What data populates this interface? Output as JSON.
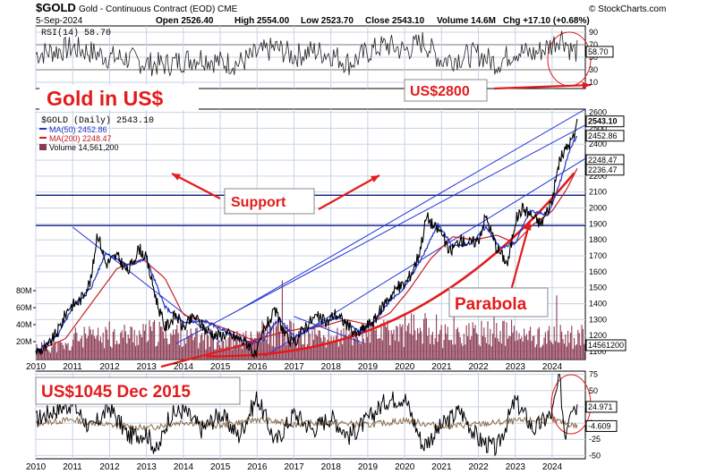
{
  "header": {
    "symbol": "$GOLD",
    "description": "Gold - Continuous Contract (EOD) CME",
    "date": "5-Sep-2024",
    "open": "Open 2526.40",
    "high": "High 2554.00",
    "low": "Low 2523.70",
    "close": "Close 2543.10",
    "volume": "Volume 14.6M",
    "chg": "Chg +17.10 (+0.68%)",
    "watermark": "© StockCharts.com"
  },
  "annotations": {
    "title": "Gold  in US$",
    "support": "Support",
    "us2800": "US$2800",
    "parabola": "Parabola",
    "low_label": "US$1045 Dec 2015"
  },
  "colors": {
    "price": "#000000",
    "ma50": "#1f35c8",
    "ma200": "#c81e1e",
    "volume": "#8a3a52",
    "grid": "#c7d3e6",
    "annotation_red": "#e31b1b",
    "trendline_blue": "#2536d6",
    "support_navy": "#101a80",
    "macd_brown": "#8b6a4a"
  },
  "chart_data": [
    {
      "type": "line",
      "panel": "RSI",
      "legend": "RSI(14) 58.70",
      "yticks": [
        10,
        30,
        50,
        70,
        90
      ],
      "ylim": [
        0,
        100
      ],
      "levels": [
        30,
        70
      ],
      "last_value_label": "58.70",
      "series": [
        {
          "name": "RSI(14)",
          "x": [
            2010.0,
            2010.5,
            2011.0,
            2011.5,
            2012.0,
            2012.5,
            2013.0,
            2013.5,
            2014.0,
            2014.5,
            2015.0,
            2015.5,
            2016.0,
            2016.5,
            2017.0,
            2017.5,
            2018.0,
            2018.5,
            2019.0,
            2019.5,
            2020.0,
            2020.5,
            2021.0,
            2021.5,
            2022.0,
            2022.5,
            2023.0,
            2023.5,
            2024.0,
            2024.25,
            2024.5,
            2024.68
          ],
          "values": [
            55,
            60,
            65,
            58,
            50,
            48,
            40,
            38,
            45,
            50,
            42,
            40,
            55,
            65,
            52,
            60,
            55,
            40,
            58,
            70,
            60,
            75,
            45,
            50,
            55,
            40,
            60,
            55,
            70,
            85,
            62,
            58.7
          ]
        }
      ]
    },
    {
      "type": "line",
      "panel": "Price",
      "legend": [
        "$GOLD (Daily) 2543.10",
        "MA(50) 2452.86",
        "MA(200) 2248.47",
        "Volume 14,561,200"
      ],
      "yticks": [
        1100,
        1200,
        1300,
        1400,
        1500,
        1600,
        1700,
        1800,
        1900,
        2000,
        2100,
        2200,
        2300,
        2400,
        2500,
        2600
      ],
      "ylim": [
        1050,
        2620
      ],
      "xticks": [
        "2010",
        "2011",
        "2012",
        "2013",
        "2014",
        "2015",
        "2016",
        "2017",
        "2018",
        "2019",
        "2020",
        "2021",
        "2022",
        "2023",
        "2024"
      ],
      "vol_ticks": [
        "20M",
        "40M",
        "60M",
        "80M"
      ],
      "last_labels": [
        "2543.10",
        "2452.86",
        "2248.47",
        "2236.47",
        "14561200"
      ],
      "series": [
        {
          "name": "$GOLD (Daily)",
          "x": [
            2010.0,
            2010.3,
            2010.6,
            2010.9,
            2011.2,
            2011.5,
            2011.67,
            2011.9,
            2012.2,
            2012.5,
            2012.8,
            2013.0,
            2013.3,
            2013.5,
            2013.8,
            2014.0,
            2014.3,
            2014.6,
            2014.9,
            2015.2,
            2015.5,
            2015.8,
            2015.96,
            2016.2,
            2016.5,
            2016.8,
            2017.0,
            2017.3,
            2017.6,
            2017.9,
            2018.1,
            2018.4,
            2018.7,
            2018.9,
            2019.2,
            2019.5,
            2019.8,
            2020.0,
            2020.2,
            2020.4,
            2020.6,
            2020.8,
            2021.0,
            2021.2,
            2021.5,
            2021.8,
            2022.0,
            2022.2,
            2022.5,
            2022.8,
            2023.0,
            2023.2,
            2023.4,
            2023.7,
            2023.9,
            2024.0,
            2024.2,
            2024.4,
            2024.6,
            2024.68
          ],
          "values": [
            1100,
            1120,
            1230,
            1380,
            1420,
            1550,
            1850,
            1650,
            1700,
            1600,
            1750,
            1680,
            1400,
            1250,
            1330,
            1250,
            1320,
            1240,
            1200,
            1210,
            1180,
            1140,
            1060,
            1250,
            1350,
            1180,
            1150,
            1260,
            1320,
            1280,
            1340,
            1280,
            1200,
            1250,
            1300,
            1420,
            1500,
            1520,
            1600,
            1720,
            1950,
            1880,
            1850,
            1720,
            1800,
            1780,
            1800,
            1950,
            1750,
            1650,
            1920,
            2000,
            1960,
            1900,
            2000,
            2050,
            2300,
            2380,
            2450,
            2543.1
          ]
        },
        {
          "name": "MA(50)",
          "x": [
            2010.0,
            2010.6,
            2011.0,
            2011.5,
            2011.9,
            2012.5,
            2013.0,
            2013.5,
            2014.0,
            2014.6,
            2015.2,
            2015.8,
            2016.2,
            2016.6,
            2017.0,
            2017.6,
            2018.2,
            2018.8,
            2019.2,
            2019.6,
            2020.0,
            2020.5,
            2020.9,
            2021.3,
            2021.8,
            2022.2,
            2022.6,
            2023.0,
            2023.4,
            2023.9,
            2024.2,
            2024.5,
            2024.68
          ],
          "values": [
            1100,
            1200,
            1380,
            1500,
            1720,
            1640,
            1680,
            1380,
            1280,
            1290,
            1220,
            1150,
            1180,
            1310,
            1190,
            1260,
            1320,
            1220,
            1290,
            1420,
            1500,
            1700,
            1900,
            1760,
            1780,
            1880,
            1750,
            1780,
            1980,
            1960,
            2150,
            2380,
            2452.86
          ]
        },
        {
          "name": "MA(200)",
          "x": [
            2010.0,
            2010.8,
            2011.5,
            2012.2,
            2012.9,
            2013.5,
            2014.0,
            2014.7,
            2015.3,
            2015.9,
            2016.5,
            2017.1,
            2017.8,
            2018.4,
            2019.0,
            2019.6,
            2020.1,
            2020.7,
            2021.3,
            2021.9,
            2022.5,
            2023.0,
            2023.5,
            2024.0,
            2024.4,
            2024.68
          ],
          "values": [
            1100,
            1180,
            1400,
            1620,
            1680,
            1560,
            1330,
            1280,
            1230,
            1170,
            1210,
            1240,
            1260,
            1300,
            1270,
            1340,
            1480,
            1680,
            1820,
            1800,
            1830,
            1780,
            1900,
            1980,
            2120,
            2248.47
          ]
        },
        {
          "name": "Volume",
          "x": [
            2010,
            2011,
            2012,
            2013,
            2014,
            2015,
            2016,
            2017,
            2018,
            2019,
            2020,
            2021,
            2022,
            2023,
            2024
          ],
          "values": [
            15,
            25,
            28,
            30,
            24,
            22,
            30,
            25,
            26,
            30,
            35,
            28,
            30,
            26,
            22
          ]
        }
      ]
    },
    {
      "type": "line",
      "panel": "Indicator",
      "yticks": [
        -50,
        -25,
        0,
        25,
        50,
        75
      ],
      "ylim": [
        -55,
        80
      ],
      "last_labels": [
        "24.971",
        "-4.609"
      ],
      "xticks": [
        "2010",
        "2011",
        "2012",
        "2013",
        "2014",
        "2015",
        "2016",
        "2017",
        "2018",
        "2019",
        "2020",
        "2021",
        "2022",
        "2023",
        "2024"
      ],
      "series": [
        {
          "name": "black",
          "x": [
            2010.0,
            2010.5,
            2011.0,
            2011.5,
            2012.0,
            2012.5,
            2013.0,
            2013.3,
            2013.6,
            2014.0,
            2014.5,
            2015.0,
            2015.5,
            2016.0,
            2016.5,
            2017.0,
            2017.5,
            2018.0,
            2018.5,
            2019.0,
            2019.5,
            2020.0,
            2020.5,
            2021.0,
            2021.5,
            2022.0,
            2022.5,
            2023.0,
            2023.5,
            2024.0,
            2024.2,
            2024.35,
            2024.5,
            2024.68
          ],
          "values": [
            5,
            20,
            30,
            -10,
            25,
            -20,
            -15,
            -45,
            10,
            20,
            -10,
            15,
            -20,
            40,
            -30,
            15,
            -10,
            10,
            -20,
            5,
            35,
            40,
            -35,
            -5,
            20,
            -25,
            -40,
            35,
            -10,
            15,
            70,
            -20,
            30,
            24.971
          ]
        },
        {
          "name": "brown",
          "x": [
            2010.0,
            2011.0,
            2012.0,
            2013.0,
            2014.0,
            2015.0,
            2016.0,
            2017.0,
            2018.0,
            2019.0,
            2020.0,
            2021.0,
            2022.0,
            2023.0,
            2024.0,
            2024.68
          ],
          "values": [
            0,
            5,
            -3,
            -8,
            2,
            -4,
            6,
            -2,
            1,
            -3,
            4,
            -5,
            -2,
            3,
            5,
            -4.609
          ]
        }
      ]
    }
  ]
}
